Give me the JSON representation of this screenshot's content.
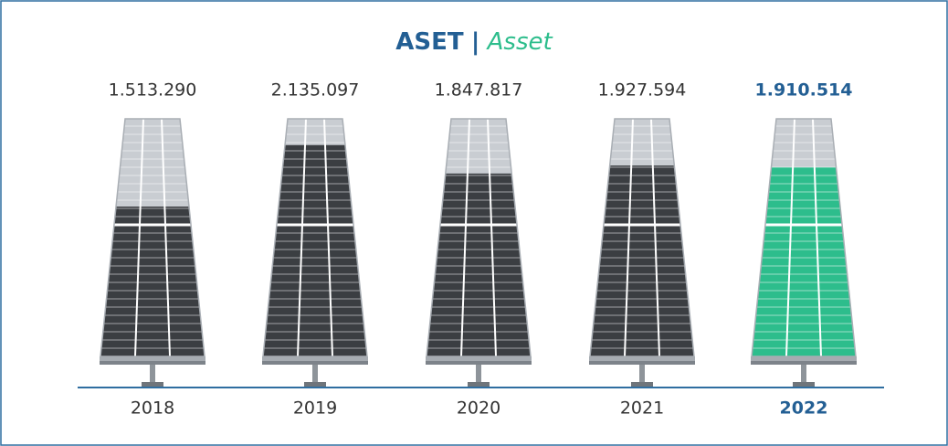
{
  "chart_data": {
    "type": "pictorial-bar",
    "title": "ASET",
    "title_separator": "|",
    "subtitle": "Asset",
    "categories": [
      "2018",
      "2019",
      "2020",
      "2021",
      "2022"
    ],
    "values": [
      1513290,
      2135097,
      1847817,
      1927594,
      1910514
    ],
    "value_labels": [
      "1.513.290",
      "2.135.097",
      "1.847.817",
      "1.927.594",
      "1.910.514"
    ],
    "colors": [
      "#3b3e42",
      "#3b3e42",
      "#3b3e42",
      "#3b3e42",
      "#2dbd8c"
    ],
    "label_colors": [
      "#333333",
      "#333333",
      "#333333",
      "#333333",
      "#235f94"
    ],
    "ylim": [
      0,
      2400000
    ]
  }
}
